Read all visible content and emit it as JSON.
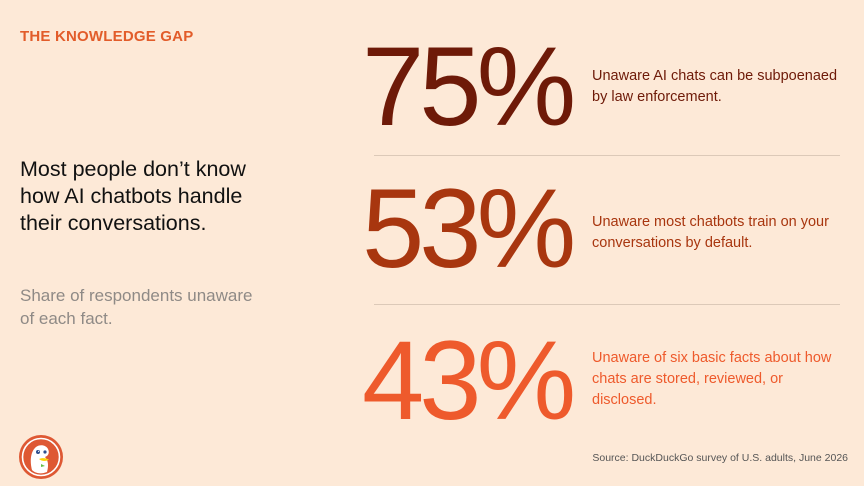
{
  "eyebrow": "THE KNOWLEDGE GAP",
  "headline": "Most people don’t know how AI chatbots handle their conversations.",
  "subhead": "Share of respondents unaware of each fact.",
  "stats": [
    {
      "value": "75%",
      "description": "Unaware AI chats can be subpoenaed by law enforcement.",
      "color": "#6E1A08"
    },
    {
      "value": "53%",
      "description": "Unaware most chatbots train on your conversations by default.",
      "color": "#A8360F"
    },
    {
      "value": "43%",
      "description": "Unaware of six basic facts about how chats are stored, reviewed, or disclosed.",
      "color": "#EE5A2C"
    }
  ],
  "source": "Source: DuckDuckGo survey of U.S. adults, June 2026",
  "logo": {
    "icon": "duckduckgo-logo-icon",
    "accent": "#DE5833"
  },
  "colors": {
    "background": "#FDE9D7",
    "eyebrow": "#E25C2A"
  }
}
